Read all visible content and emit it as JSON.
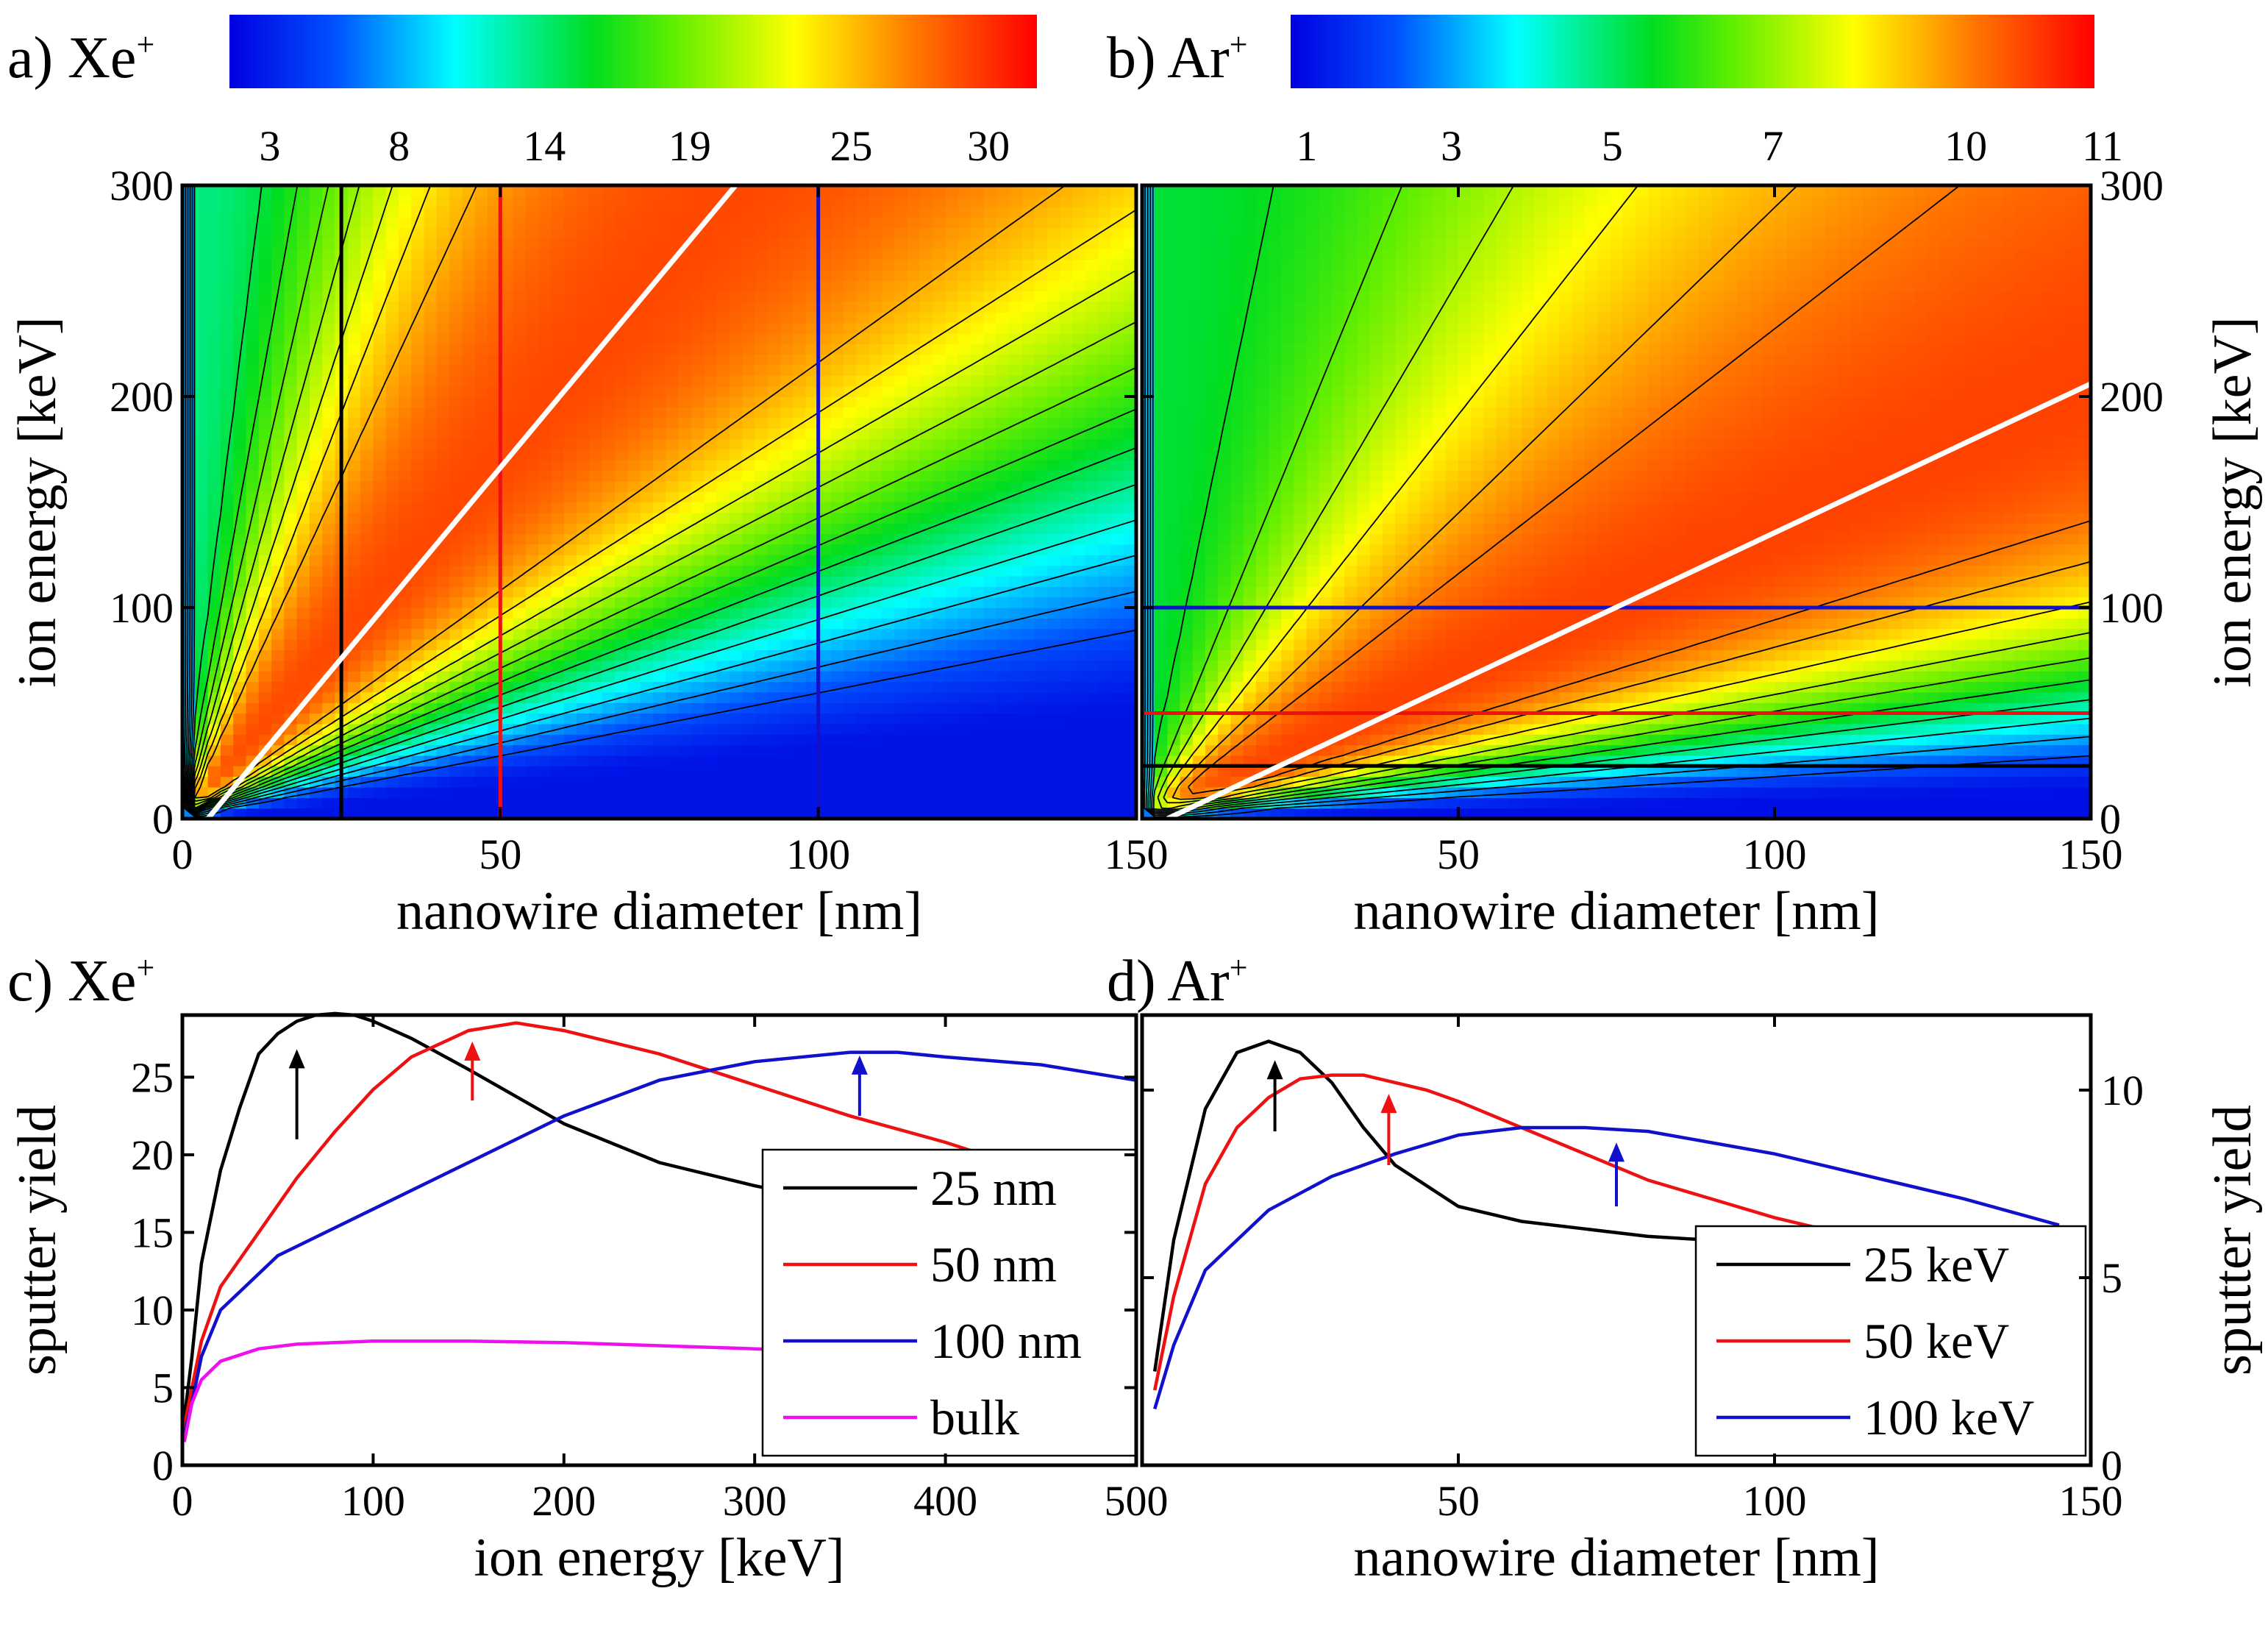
{
  "chart_data": [
    {
      "panel": "a",
      "label": "a) Xe",
      "label_sup": "+",
      "type": "heatmap",
      "xlabel": "nanowire diameter [nm]",
      "ylabel": "ion energy [keV]",
      "xlim": [
        0,
        150
      ],
      "ylim": [
        0,
        300
      ],
      "x_ticks": [
        "0",
        "50",
        "100",
        "150"
      ],
      "y_ticks": [
        "0",
        "100",
        "200",
        "300"
      ],
      "colorbar": {
        "ticks": [
          "3",
          "8",
          "14",
          "19",
          "25",
          "30"
        ],
        "range": [
          0,
          33
        ]
      },
      "value_model": {
        "peak_value": 30,
        "peak_ridge_slope_keV_per_nm": 3.45,
        "ridge_width_decades": 0.38,
        "asymptote_value": 12.5,
        "min_value": 1
      },
      "contour_levels": [
        4,
        6,
        8,
        10,
        12,
        14,
        16,
        18,
        20,
        22,
        24,
        26
      ],
      "max_line": {
        "color": "#ffffff",
        "points": [
          [
            4,
            0
          ],
          [
            87,
            300
          ]
        ]
      },
      "cut_lines": [
        {
          "orientation": "vertical",
          "value": 25,
          "color": "#000000"
        },
        {
          "orientation": "vertical",
          "value": 50,
          "color": "#ee1111"
        },
        {
          "orientation": "vertical",
          "value": 100,
          "color": "#1111cc"
        }
      ]
    },
    {
      "panel": "b",
      "label": "b) Ar",
      "label_sup": "+",
      "type": "heatmap",
      "xlabel": "nanowire diameter [nm]",
      "ylabel": "ion energy [keV]",
      "xlim": [
        0,
        150
      ],
      "ylim": [
        0,
        300
      ],
      "x_ticks": [
        "",
        "50",
        "100",
        "150"
      ],
      "y_ticks": [
        "0",
        "100",
        "200",
        "300"
      ],
      "colorbar": {
        "ticks": [
          "1",
          "3",
          "5",
          "7",
          "10",
          "11"
        ],
        "range": [
          0,
          12
        ]
      },
      "value_model": {
        "peak_value": 11,
        "peak_ridge_slope_keV_per_nm": 1.37,
        "ridge_width_decades": 0.42,
        "asymptote_value": 5.2,
        "min_value": 0.3
      },
      "contour_levels": [
        1.5,
        2.5,
        3.5,
        4.5,
        5.5,
        6.5,
        7.5,
        8.5,
        9.5,
        10.2
      ],
      "max_line": {
        "color": "#ffffff",
        "points": [
          [
            4,
            0
          ],
          [
            150,
            206
          ]
        ]
      },
      "cut_lines": [
        {
          "orientation": "horizontal",
          "value": 100,
          "color": "#1111cc"
        },
        {
          "orientation": "horizontal",
          "value": 50,
          "color": "#ee1111"
        },
        {
          "orientation": "horizontal",
          "value": 25,
          "color": "#000000"
        }
      ]
    },
    {
      "panel": "c",
      "label": "c) Xe",
      "label_sup": "+",
      "type": "line",
      "xlabel": "ion energy [keV]",
      "ylabel": "sputter yield",
      "xlim": [
        0,
        500
      ],
      "ylim": [
        0,
        29
      ],
      "x_ticks": [
        "0",
        "100",
        "200",
        "300",
        "400",
        "500"
      ],
      "y_ticks": [
        "0",
        "5",
        "10",
        "15",
        "20",
        "25"
      ],
      "series": [
        {
          "name": "25 nm",
          "color": "#000000",
          "x": [
            1,
            5,
            10,
            20,
            30,
            40,
            50,
            60,
            70,
            80,
            90,
            100,
            120,
            150,
            200,
            250,
            300,
            320
          ],
          "y": [
            3,
            7,
            13,
            19,
            23,
            26.5,
            27.8,
            28.6,
            29,
            29.1,
            29,
            28.6,
            27.5,
            25.5,
            22,
            19.5,
            18,
            17.5
          ]
        },
        {
          "name": "50 nm",
          "color": "#ee1111",
          "x": [
            1,
            5,
            10,
            20,
            40,
            60,
            80,
            100,
            120,
            150,
            175,
            200,
            250,
            300,
            350,
            400,
            420
          ],
          "y": [
            2.5,
            5,
            8,
            11.5,
            15,
            18.5,
            21.5,
            24.2,
            26.3,
            28,
            28.5,
            28,
            26.5,
            24.5,
            22.5,
            20.8,
            20
          ]
        },
        {
          "name": "100 nm",
          "color": "#1111cc",
          "x": [
            1,
            5,
            10,
            20,
            50,
            100,
            150,
            200,
            250,
            300,
            350,
            375,
            400,
            450,
            500
          ],
          "y": [
            2,
            4,
            7,
            10,
            13.5,
            16.5,
            19.5,
            22.5,
            24.8,
            26,
            26.6,
            26.6,
            26.3,
            25.8,
            24.8
          ]
        },
        {
          "name": "bulk",
          "color": "#ee11ee",
          "x": [
            1,
            5,
            10,
            20,
            40,
            60,
            80,
            100,
            150,
            200,
            250,
            300,
            320
          ],
          "y": [
            1.5,
            4,
            5.5,
            6.7,
            7.5,
            7.8,
            7.9,
            8,
            8,
            7.9,
            7.7,
            7.5,
            7.4
          ]
        }
      ],
      "arrows": [
        {
          "x": 60,
          "y_tail": 21,
          "y_head": 26.8,
          "color": "#000000"
        },
        {
          "x": 152,
          "y_tail": 23.5,
          "y_head": 27.3,
          "color": "#ee1111"
        },
        {
          "x": 355,
          "y_tail": 22.5,
          "y_head": 26.4,
          "color": "#1111cc"
        }
      ]
    },
    {
      "panel": "d",
      "label": "d) Ar",
      "label_sup": "+",
      "type": "line",
      "xlabel": "nanowire diameter [nm]",
      "ylabel": "sputter yield",
      "xlim": [
        0,
        150
      ],
      "ylim": [
        0,
        12
      ],
      "x_ticks": [
        "",
        "50",
        "100",
        "150"
      ],
      "y_ticks": [
        "0",
        "5",
        "10"
      ],
      "series": [
        {
          "name": "25 keV",
          "color": "#000000",
          "x": [
            2,
            5,
            10,
            15,
            20,
            25,
            30,
            35,
            40,
            50,
            60,
            70,
            80,
            90
          ],
          "y": [
            2.5,
            6,
            9.5,
            11,
            11.3,
            11,
            10.2,
            9,
            8,
            6.9,
            6.5,
            6.3,
            6.1,
            6
          ]
        },
        {
          "name": "50 keV",
          "color": "#ee1111",
          "x": [
            2,
            5,
            10,
            15,
            20,
            25,
            30,
            35,
            40,
            45,
            50,
            60,
            70,
            80,
            90,
            100,
            110
          ],
          "y": [
            2,
            4.5,
            7.5,
            9,
            9.8,
            10.3,
            10.4,
            10.4,
            10.2,
            10,
            9.7,
            9,
            8.3,
            7.6,
            7.1,
            6.6,
            6.2
          ]
        },
        {
          "name": "100 keV",
          "color": "#1111cc",
          "x": [
            2,
            5,
            10,
            20,
            30,
            40,
            50,
            60,
            70,
            80,
            90,
            100,
            110,
            120,
            130,
            145
          ],
          "y": [
            1.5,
            3.2,
            5.2,
            6.8,
            7.7,
            8.3,
            8.8,
            9,
            9,
            8.9,
            8.6,
            8.3,
            7.9,
            7.5,
            7.1,
            6.4
          ]
        }
      ],
      "arrows": [
        {
          "x": 21,
          "y_tail": 8.9,
          "y_head": 10.8,
          "color": "#000000"
        },
        {
          "x": 39,
          "y_tail": 8,
          "y_head": 9.9,
          "color": "#ee1111"
        },
        {
          "x": 75,
          "y_tail": 6.9,
          "y_head": 8.6,
          "color": "#1111cc"
        }
      ]
    }
  ]
}
